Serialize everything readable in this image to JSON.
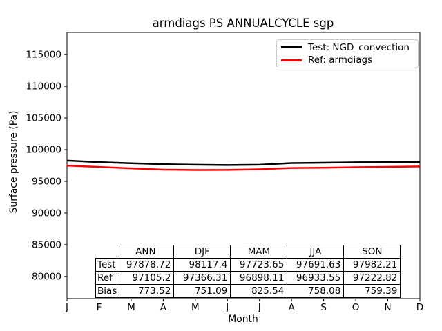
{
  "chart_data": {
    "type": "line",
    "title": "armdiags PS ANNUALCYCLE sgp",
    "xlabel": "Month",
    "ylabel": "Surface pressure (Pa)",
    "x_ticklabels": [
      "J",
      "F",
      "M",
      "A",
      "M",
      "J",
      "J",
      "A",
      "S",
      "O",
      "N",
      "D"
    ],
    "y_ticks": [
      80000,
      85000,
      90000,
      95000,
      100000,
      105000,
      110000,
      115000
    ],
    "ylim": [
      76500,
      118500
    ],
    "grid": false,
    "legend_position": "upper right",
    "series": [
      {
        "name": "Test: NGD_convection",
        "color": "#000000",
        "values": [
          98280,
          98030,
          97850,
          97700,
          97620,
          97570,
          97620,
          97885,
          97930,
          98000,
          98017,
          98042
        ]
      },
      {
        "name": "Ref: armdiags",
        "color": "#ff0000",
        "values": [
          97480,
          97270,
          97050,
          96850,
          96794,
          96800,
          96900,
          97100,
          97150,
          97230,
          97288,
          97349
        ]
      }
    ],
    "table": {
      "col_headers": [
        "ANN",
        "DJF",
        "MAM",
        "JJA",
        "SON"
      ],
      "rows": [
        {
          "label": "Test",
          "values": [
            "97878.72",
            "98117.4",
            "97723.65",
            "97691.63",
            "97982.21"
          ]
        },
        {
          "label": "Ref",
          "values": [
            "97105.2",
            "97366.31",
            "96898.11",
            "96933.55",
            "97222.82"
          ]
        },
        {
          "label": "Bias",
          "values": [
            "773.52",
            "751.09",
            "825.54",
            "758.08",
            "759.39"
          ]
        }
      ]
    }
  }
}
